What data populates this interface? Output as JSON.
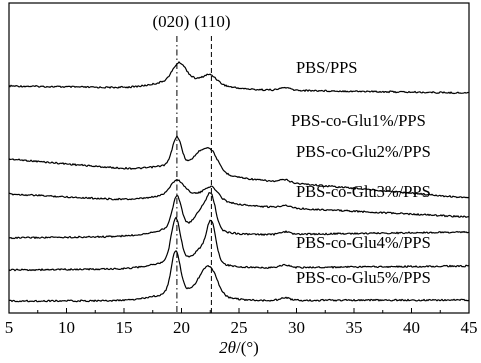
{
  "chart_data": {
    "type": "line",
    "xlabel_italic": "2θ",
    "xlabel_rest": "/(°)",
    "xlim": [
      5,
      45
    ],
    "x_ticks": [
      5,
      10,
      15,
      20,
      25,
      30,
      35,
      40,
      45
    ],
    "grid": false,
    "y_axis_labels": false,
    "reference_lines": [
      {
        "label": "(020)",
        "x": 19.6,
        "style": "dash-dot"
      },
      {
        "label": "(110)",
        "x": 22.6,
        "style": "dashed"
      }
    ],
    "series": [
      {
        "name": "PBS/PPS",
        "offset": 5,
        "peaks": [
          {
            "x": 19.8,
            "h": 0.75
          },
          {
            "x": 22.5,
            "h": 0.35
          }
        ]
      },
      {
        "name": "PBS-co-Glu1%/PPS",
        "offset": 4,
        "peaks": [
          {
            "x": 19.6,
            "h": 1.25
          },
          {
            "x": 21.6,
            "h": 0.55
          },
          {
            "x": 22.6,
            "h": 0.8
          }
        ]
      },
      {
        "name": "PBS-co-Glu2%/PPS",
        "offset": 3,
        "peaks": [
          {
            "x": 19.6,
            "h": 0.6
          },
          {
            "x": 22.6,
            "h": 0.5
          }
        ]
      },
      {
        "name": "PBS-co-Glu3%/PPS",
        "offset": 2,
        "peaks": [
          {
            "x": 19.6,
            "h": 1.4
          },
          {
            "x": 21.8,
            "h": 0.8
          },
          {
            "x": 22.6,
            "h": 1.3
          }
        ]
      },
      {
        "name": "PBS-co-Glu4%/PPS",
        "offset": 1,
        "peaks": [
          {
            "x": 19.5,
            "h": 1.9
          },
          {
            "x": 21.8,
            "h": 0.5
          },
          {
            "x": 22.6,
            "h": 1.7
          }
        ]
      },
      {
        "name": "PBS-co-Glu5%/PPS",
        "offset": 0,
        "peaks": [
          {
            "x": 19.5,
            "h": 1.85
          },
          {
            "x": 21.8,
            "h": 0.55
          },
          {
            "x": 22.6,
            "h": 1.0
          }
        ]
      }
    ]
  }
}
